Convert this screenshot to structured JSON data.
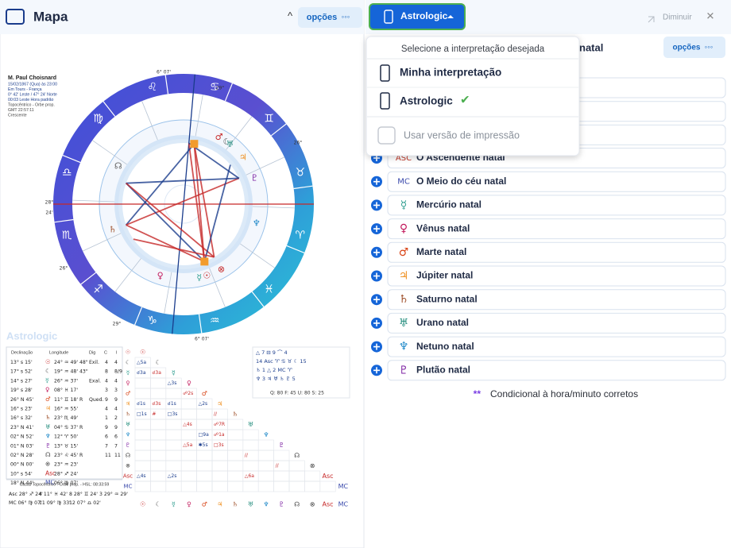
{
  "left_panel": {
    "title": "Mapa",
    "collapse_icon": "^",
    "options_button": "opções",
    "options_dots": "◦◦◦"
  },
  "chart_info": {
    "name": "M. Paul Choisnard",
    "lines": [
      "15/02/1867 (Qua) às 23:00",
      "Em Tours - França",
      "0° 42' Leste / 47° 24' Norte",
      "00:03 Leste Hora padrão",
      "Topocêntrico - Orbe prop.",
      "GMT 22:57:11",
      "Crescente"
    ]
  },
  "zodiac_signs": [
    "♍",
    "♌",
    "♋",
    "♊",
    "♉",
    "♈",
    "♓",
    "♒",
    "♑",
    "♐",
    "♏",
    "♎"
  ],
  "wheel_labels": [
    "6° 07'",
    "29°",
    "26°",
    "28°",
    "24'",
    "26°",
    "29°",
    "6° 07'"
  ],
  "wheel_planets": [
    "♂",
    "☾",
    "♅",
    "♃",
    "♆",
    "♇",
    "☉",
    "☿",
    "♀",
    "♄",
    "⊗",
    "☊"
  ],
  "watermark": "Astrologic",
  "positions_table": {
    "headers": [
      "Declinação",
      "Longitude",
      "Dig",
      "C",
      "I"
    ],
    "rows": [
      [
        "13° s 15'",
        "☉",
        "24° ♒ 49' 48\"",
        "Exil.",
        "4",
        "4"
      ],
      [
        "17° s 52'",
        "☾",
        "19° ♒ 48' 43\"",
        "",
        "8",
        "8/9"
      ],
      [
        "14° s 27'",
        "☿",
        "26° ♒ 37'",
        "Exal.",
        "4",
        "4"
      ],
      [
        "19° s 28'",
        "♀",
        "08° ♓ 17'",
        "",
        "3",
        "3"
      ],
      [
        "26° N 45'",
        "♂",
        "11° ♊ 18' R",
        "Qued.",
        "9",
        "9"
      ],
      [
        "16° s 23'",
        "♃",
        "16° ♒ 55'",
        "",
        "4",
        "4"
      ],
      [
        "16° s 32'",
        "♄",
        "23° ♏ 49'",
        "",
        "1",
        "2"
      ],
      [
        "23° N 41'",
        "♅",
        "04° ♋ 37' R",
        "",
        "9",
        "9"
      ],
      [
        "02° N 52'",
        "♆",
        "12° ♈ 50'",
        "",
        "6",
        "6"
      ],
      [
        "01° N 03'",
        "♇",
        "13° ♉ 15'",
        "",
        "7",
        "7"
      ],
      [
        "02° N 28'",
        "☊",
        "23° ♌ 45' R",
        "",
        "11",
        "11"
      ],
      [
        "00° N 00'",
        "⊗",
        "23° ♒ 23'",
        "",
        "",
        ""
      ],
      [
        "10° s 54'",
        "Asc",
        "28° ♐ 24'",
        "",
        "",
        ""
      ],
      [
        "18° N 44'",
        "MC",
        "06° ♍ 07'",
        "",
        "",
        ""
      ]
    ]
  },
  "houses_table": {
    "title": "Casas Topocêntrico - Orbe prop. - HSL: 08:33:59",
    "rows": [
      [
        "Asc 28° ♐ 24'",
        "4 11° ♓ 42'",
        "8 28° ♊ 24'",
        "3 29° ♒ 29'"
      ],
      [
        "MC 06° ♍ 07'",
        "11 09° ♍ 33'",
        "12 07° ♎ 02'"
      ]
    ]
  },
  "aspect_grid": {
    "planets": [
      "☉",
      "☾",
      "☿",
      "♀",
      "♂",
      "♃",
      "♄",
      "♅",
      "♆",
      "♇",
      "☊",
      "⊗",
      "Asc",
      "MC"
    ],
    "rows": [
      [],
      [
        "△5a"
      ],
      [
        "☌3a",
        "☌3a"
      ],
      [
        null,
        null,
        "△3s"
      ],
      [
        null,
        null,
        null,
        "☍2s"
      ],
      [
        "☌1s",
        "☌3s",
        "☌1s",
        null,
        "△2s"
      ],
      [
        "□1s",
        "#",
        "□3s",
        null,
        null,
        "//"
      ],
      [
        null,
        null,
        null,
        "△4s",
        null,
        "☍7R"
      ],
      [
        null,
        null,
        null,
        null,
        "□9a",
        "☍1a"
      ],
      [
        null,
        null,
        null,
        "△5a",
        "✱5s",
        "□3s"
      ],
      [
        null,
        null,
        null,
        null,
        null,
        null,
        null,
        "//"
      ],
      [
        null,
        null,
        null,
        null,
        null,
        null,
        null,
        null,
        null,
        "//"
      ],
      [
        "△4s",
        null,
        "△2s",
        null,
        null,
        null,
        null,
        "△6a"
      ],
      []
    ]
  },
  "aspect_summary": {
    "lines": [
      "△ 7   ⊟ 9   ⌒ 4",
      "14  Asc ♈ ♋ ♉ ☾  15",
      "♄ 1   △ 2   MC ♈",
      "♆ 3   ♃ ♅ ♄ ♇  5"
    ],
    "totals": "Q: 80   F: 45   U: 80   S: 25"
  },
  "right_panel": {
    "interpretation_button": "Astrologic",
    "minimize": "Diminuir",
    "close": "✕",
    "section_title": "natal",
    "options_button": "opções",
    "options_dots": "◦◦◦",
    "items": [
      {
        "icon": "ASC",
        "label": "O Ascendente natal",
        "color": "#c0392b"
      },
      {
        "icon": "MC",
        "label": "O Meio do céu natal",
        "color": "#3949ab"
      },
      {
        "icon": "☿",
        "label": "Mercúrio natal",
        "color": "#2e9d8f"
      },
      {
        "icon": "♀",
        "label": "Vênus natal",
        "color": "#c2185b"
      },
      {
        "icon": "♂",
        "label": "Marte natal",
        "color": "#d84315"
      },
      {
        "icon": "♃",
        "label": "Júpiter natal",
        "color": "#ef8f1f"
      },
      {
        "icon": "♄",
        "label": "Saturno natal",
        "color": "#a0522d"
      },
      {
        "icon": "♅",
        "label": "Urano natal",
        "color": "#1e8a7a"
      },
      {
        "icon": "♆",
        "label": "Netuno natal",
        "color": "#1e88c8"
      },
      {
        "icon": "♇",
        "label": "Plutão natal",
        "color": "#7b1fa2"
      }
    ],
    "footnote_mark": "**",
    "footnote": "Condicional à hora/minuto corretos"
  },
  "dropdown": {
    "prompt": "Selecione a interpretação desejada",
    "options": [
      "Minha interpretação",
      "Astrologic"
    ],
    "check": "✔",
    "print_toggle": "Usar versão de impressão"
  }
}
